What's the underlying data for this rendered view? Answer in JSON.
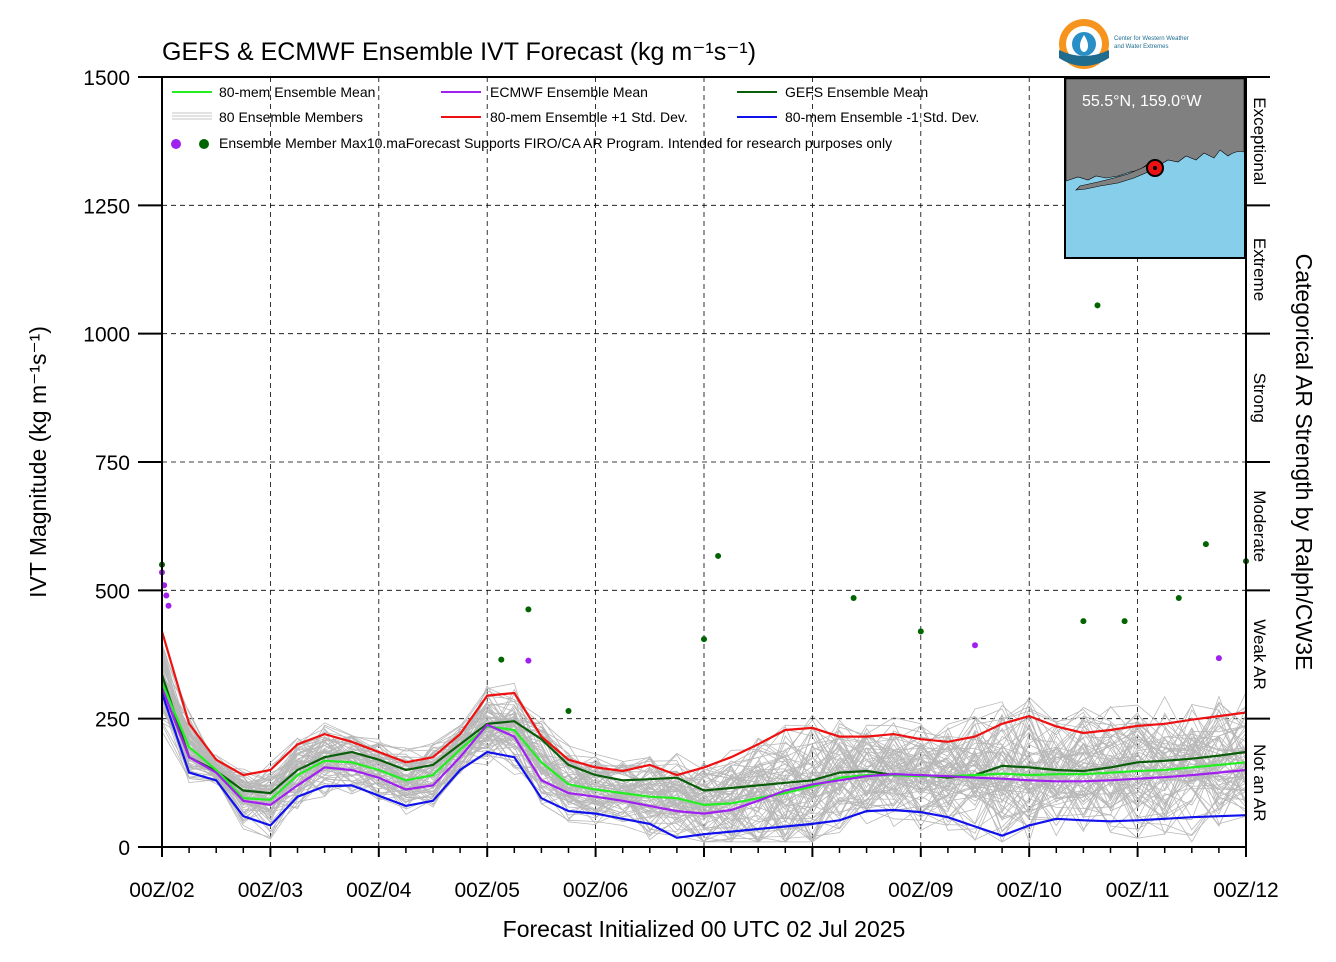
{
  "chart_data": {
    "type": "line",
    "title": "GEFS & ECMWF Ensemble IVT Forecast (kg m⁻¹s⁻¹)",
    "xlabel": "Forecast Initialized 00 UTC 02 Jul 2025",
    "ylabel": "IVT Magnitude (kg m⁻¹s⁻¹)",
    "right_label": "Categorical AR Strength by Ralph/CW3E",
    "xlim": [
      0,
      10
    ],
    "ylim": [
      0,
      1500
    ],
    "grid": true,
    "x_tick_labels": [
      "00Z/02",
      "00Z/03",
      "00Z/04",
      "00Z/05",
      "00Z/06",
      "00Z/07",
      "00Z/08",
      "00Z/09",
      "00Z/10",
      "00Z/11",
      "00Z/12"
    ],
    "y_ticks": [
      0,
      250,
      500,
      750,
      1000,
      1250,
      1500
    ],
    "categories_right": [
      {
        "label": "Not an AR",
        "from": 0,
        "to": 250
      },
      {
        "label": "Weak AR",
        "from": 250,
        "to": 500
      },
      {
        "label": "Moderate",
        "from": 500,
        "to": 750
      },
      {
        "label": "Strong",
        "from": 750,
        "to": 1000
      },
      {
        "label": "Extreme",
        "from": 1000,
        "to": 1250
      },
      {
        "label": "Exceptional",
        "from": 1250,
        "to": 1500
      }
    ],
    "legend": {
      "mean": "80-mem Ensemble Mean",
      "ecmwf": "ECMWF Ensemble Mean",
      "gefs": "GEFS Ensemble Mean",
      "members": "80 Ensemble Members",
      "plus_sd": "80-mem Ensemble +1 Std. Dev.",
      "minus_sd": "80-mem Ensemble -1 Std. Dev.",
      "max_label": "Ensemble Member Max10.maForecast Supports FIRO/CA AR Program. Intended for research purposes only",
      "placement": "top-left"
    },
    "colors": {
      "mean": "#22ee22",
      "ecmwf": "#a020f0",
      "gefs": "#0a5e0a",
      "plus_sd": "#ee1111",
      "minus_sd": "#1111ee",
      "members": "#b8b8b8",
      "ecmwf_max": "#a020f0",
      "gefs_max": "#006400",
      "map_ocean": "#87ceeb",
      "map_land": "#808080"
    },
    "x": [
      0,
      0.25,
      0.5,
      0.75,
      1.0,
      1.25,
      1.5,
      1.75,
      2.0,
      2.25,
      2.5,
      2.75,
      3.0,
      3.25,
      3.5,
      3.75,
      4.0,
      4.25,
      4.5,
      4.75,
      5.0,
      5.25,
      5.5,
      5.75,
      6.0,
      6.25,
      6.5,
      6.75,
      7.0,
      7.25,
      7.5,
      7.75,
      8.0,
      8.25,
      8.5,
      8.75,
      9.0,
      9.25,
      9.5,
      9.75,
      10.0
    ],
    "series": [
      {
        "name": "80-mem Ensemble +1 Std. Dev.",
        "key": "plus_sd",
        "values": [
          420,
          240,
          170,
          140,
          150,
          200,
          220,
          205,
          185,
          165,
          175,
          220,
          295,
          300,
          215,
          170,
          155,
          148,
          160,
          140,
          155,
          175,
          200,
          228,
          232,
          215,
          215,
          220,
          210,
          205,
          215,
          240,
          255,
          235,
          222,
          228,
          236,
          240,
          248,
          255,
          262
        ]
      },
      {
        "name": "GEFS Ensemble Mean",
        "key": "gefs",
        "values": [
          335,
          175,
          148,
          110,
          105,
          150,
          175,
          185,
          170,
          150,
          160,
          200,
          240,
          245,
          210,
          160,
          140,
          130,
          132,
          135,
          110,
          115,
          120,
          125,
          130,
          145,
          148,
          140,
          140,
          135,
          140,
          158,
          155,
          150,
          148,
          155,
          165,
          168,
          172,
          178,
          185
        ]
      },
      {
        "name": "80-mem Ensemble Mean",
        "key": "mean",
        "values": [
          320,
          195,
          150,
          95,
          92,
          140,
          168,
          165,
          150,
          130,
          140,
          190,
          235,
          228,
          165,
          122,
          112,
          105,
          98,
          95,
          82,
          85,
          95,
          105,
          118,
          135,
          140,
          140,
          138,
          138,
          140,
          143,
          140,
          142,
          142,
          145,
          148,
          150,
          155,
          160,
          165
        ]
      },
      {
        "name": "ECMWF Ensemble Mean",
        "key": "ecmwf",
        "values": [
          310,
          175,
          145,
          90,
          82,
          120,
          155,
          150,
          135,
          112,
          120,
          175,
          238,
          215,
          130,
          105,
          98,
          90,
          80,
          70,
          65,
          72,
          90,
          110,
          122,
          130,
          138,
          142,
          140,
          138,
          135,
          133,
          130,
          128,
          128,
          130,
          133,
          136,
          140,
          145,
          150
        ]
      },
      {
        "name": "80-mem Ensemble -1 Std. Dev.",
        "key": "minus_sd",
        "values": [
          300,
          145,
          130,
          60,
          42,
          98,
          118,
          120,
          100,
          80,
          90,
          150,
          185,
          175,
          95,
          70,
          65,
          55,
          45,
          18,
          25,
          30,
          35,
          40,
          45,
          52,
          70,
          72,
          68,
          58,
          40,
          22,
          42,
          55,
          52,
          50,
          52,
          55,
          58,
          60,
          62
        ]
      }
    ],
    "members_count": 80,
    "ensemble_member_max": {
      "gefs": [
        {
          "x": 0.0,
          "y": 550
        },
        {
          "x": 3.13,
          "y": 365
        },
        {
          "x": 3.38,
          "y": 463
        },
        {
          "x": 3.75,
          "y": 265
        },
        {
          "x": 5.0,
          "y": 405
        },
        {
          "x": 5.13,
          "y": 567
        },
        {
          "x": 6.38,
          "y": 485
        },
        {
          "x": 7.0,
          "y": 420
        },
        {
          "x": 8.5,
          "y": 440
        },
        {
          "x": 8.63,
          "y": 1055
        },
        {
          "x": 8.88,
          "y": 440
        },
        {
          "x": 9.38,
          "y": 485
        },
        {
          "x": 9.63,
          "y": 590
        },
        {
          "x": 10.0,
          "y": 557
        }
      ],
      "ecmwf": [
        {
          "x": 0.0,
          "y": 535
        },
        {
          "x": 0.02,
          "y": 510
        },
        {
          "x": 0.04,
          "y": 490
        },
        {
          "x": 0.06,
          "y": 470
        },
        {
          "x": 3.38,
          "y": 363
        },
        {
          "x": 7.5,
          "y": 393
        },
        {
          "x": 9.75,
          "y": 368
        }
      ]
    },
    "inset_map": {
      "location_label": "55.5°N, 159.0°W",
      "marker_color": "#ee1111"
    }
  },
  "logo": {
    "line1": "Center for Western Weather",
    "line2": "and Water Extremes"
  }
}
